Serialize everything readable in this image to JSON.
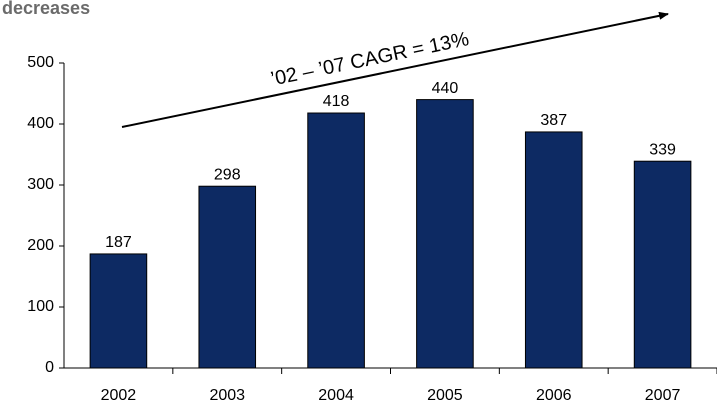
{
  "chart_data": {
    "type": "bar",
    "title": "decreases",
    "annotation": "’02 – ’07 CAGR = 13%",
    "categories": [
      "2002",
      "2003",
      "2004",
      "2005",
      "2006",
      "2007"
    ],
    "values": [
      187,
      298,
      418,
      440,
      387,
      339
    ],
    "color": "#0d2a63",
    "ylim": [
      0,
      500
    ],
    "yticks": [
      0,
      100,
      200,
      300,
      400,
      500
    ],
    "grid": false
  }
}
